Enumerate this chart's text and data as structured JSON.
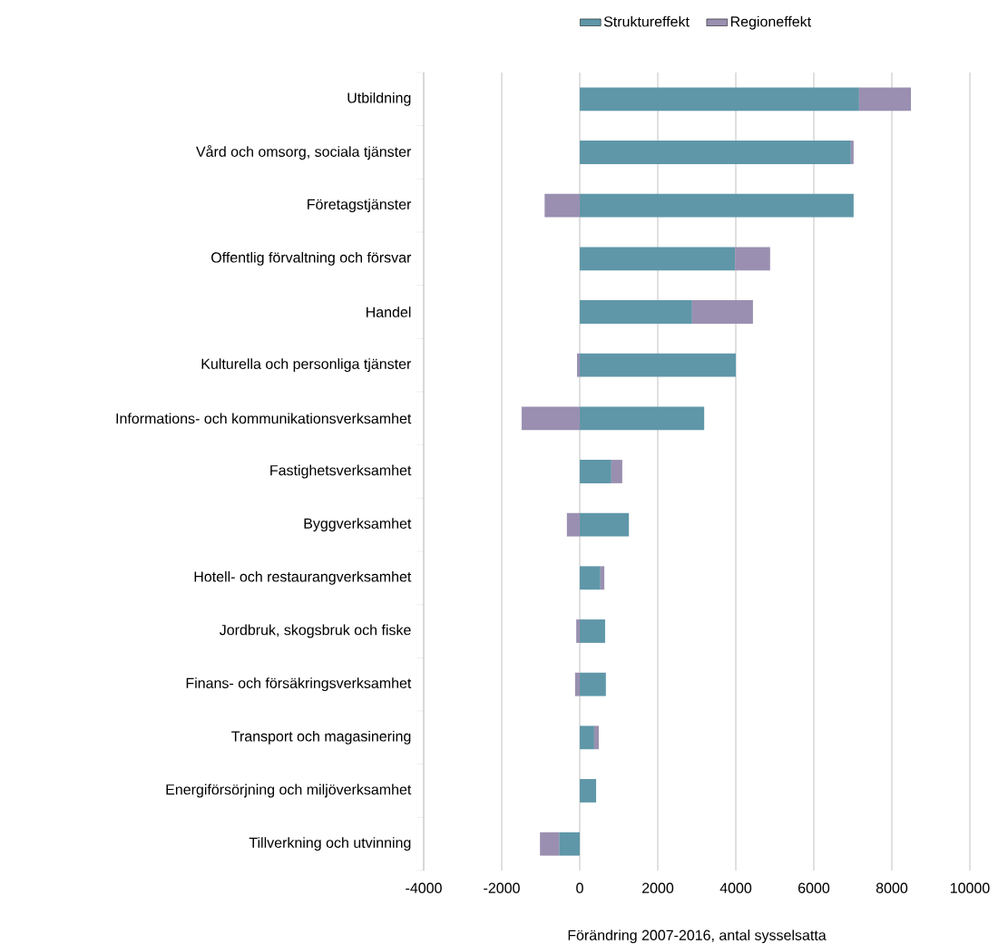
{
  "chart_data": {
    "type": "bar",
    "orientation": "horizontal",
    "stacked": true,
    "categories": [
      "Utbildning",
      "Vård och omsorg, sociala tjänster",
      "Företagstjänster",
      "Offentlig förvaltning och försvar",
      "Handel",
      "Kulturella och personliga tjänster",
      "Informations- och kommunikationsverksamhet",
      "Fastighetsverksamhet",
      "Byggverksamhet",
      "Hotell- och restaurangverksamhet",
      "Jordbruk, skogsbruk och fiske",
      "Finans- och försäkringsverksamhet",
      "Transport och magasinering",
      "Energiförsörjning och miljöverksamhet",
      "Tillverkning och utvinning"
    ],
    "series": [
      {
        "name": "Struktureffekt",
        "color": "#5f97a8",
        "values": [
          7160,
          6950,
          7020,
          3980,
          2880,
          4000,
          3190,
          810,
          1260,
          530,
          650,
          670,
          370,
          420,
          -530
        ]
      },
      {
        "name": "Regioneffekt",
        "color": "#9a8fb0",
        "values": [
          1330,
          70,
          -900,
          900,
          1560,
          -70,
          -1490,
          280,
          -330,
          100,
          -90,
          -120,
          120,
          0,
          -490
        ]
      }
    ],
    "xlim": [
      -4000,
      10000
    ],
    "xticks": [
      -4000,
      -2000,
      0,
      2000,
      4000,
      6000,
      8000,
      10000
    ],
    "xlabel": "Förändring 2007-2016, antal sysselsatta",
    "grid": "x",
    "legend": "top"
  }
}
